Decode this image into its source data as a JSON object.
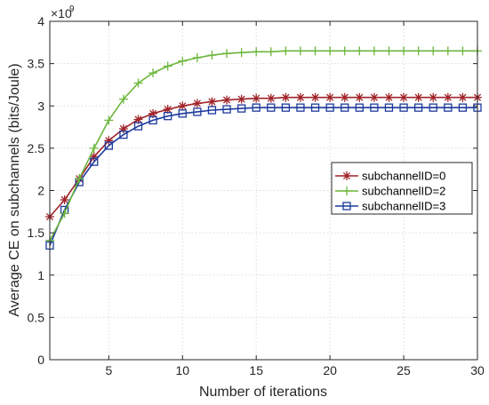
{
  "chart_data": {
    "type": "line",
    "xlabel": "Number of iterations",
    "ylabel": "Average CE on subchannels (bits/Joule)",
    "scale_label": "×10",
    "scale_exponent": "9",
    "xlim": [
      1,
      30
    ],
    "ylim": [
      0,
      4
    ],
    "x_ticks": [
      5,
      10,
      15,
      20,
      25,
      30
    ],
    "y_ticks": [
      0,
      0.5,
      1,
      1.5,
      2,
      2.5,
      3,
      3.5,
      4
    ],
    "grid": true,
    "legend_position": "right",
    "x": [
      1,
      2,
      3,
      4,
      5,
      6,
      7,
      8,
      9,
      10,
      11,
      12,
      13,
      14,
      15,
      16,
      17,
      18,
      19,
      20,
      21,
      22,
      23,
      24,
      25,
      26,
      27,
      28,
      29,
      30
    ],
    "series": [
      {
        "name": "subchannelID=0",
        "color": "#a0242a",
        "marker": "asterisk",
        "values": [
          1.69,
          1.89,
          2.14,
          2.4,
          2.59,
          2.73,
          2.84,
          2.91,
          2.96,
          3.0,
          3.03,
          3.05,
          3.07,
          3.08,
          3.09,
          3.09,
          3.1,
          3.1,
          3.1,
          3.1,
          3.1,
          3.1,
          3.1,
          3.1,
          3.1,
          3.1,
          3.1,
          3.1,
          3.1,
          3.1
        ]
      },
      {
        "name": "subchannelID=2",
        "color": "#6cb63c",
        "marker": "plus",
        "values": [
          1.41,
          1.73,
          2.14,
          2.5,
          2.83,
          3.08,
          3.27,
          3.39,
          3.47,
          3.53,
          3.57,
          3.6,
          3.62,
          3.63,
          3.64,
          3.64,
          3.65,
          3.65,
          3.65,
          3.65,
          3.65,
          3.65,
          3.65,
          3.65,
          3.65,
          3.65,
          3.65,
          3.65,
          3.65,
          3.65
        ]
      },
      {
        "name": "subchannelID=3",
        "color": "#1c3a9c",
        "marker": "square",
        "values": [
          1.35,
          1.77,
          2.1,
          2.34,
          2.53,
          2.66,
          2.76,
          2.83,
          2.88,
          2.91,
          2.93,
          2.95,
          2.96,
          2.97,
          2.98,
          2.98,
          2.98,
          2.98,
          2.98,
          2.98,
          2.98,
          2.98,
          2.98,
          2.98,
          2.98,
          2.98,
          2.98,
          2.98,
          2.98,
          2.98
        ]
      }
    ]
  }
}
